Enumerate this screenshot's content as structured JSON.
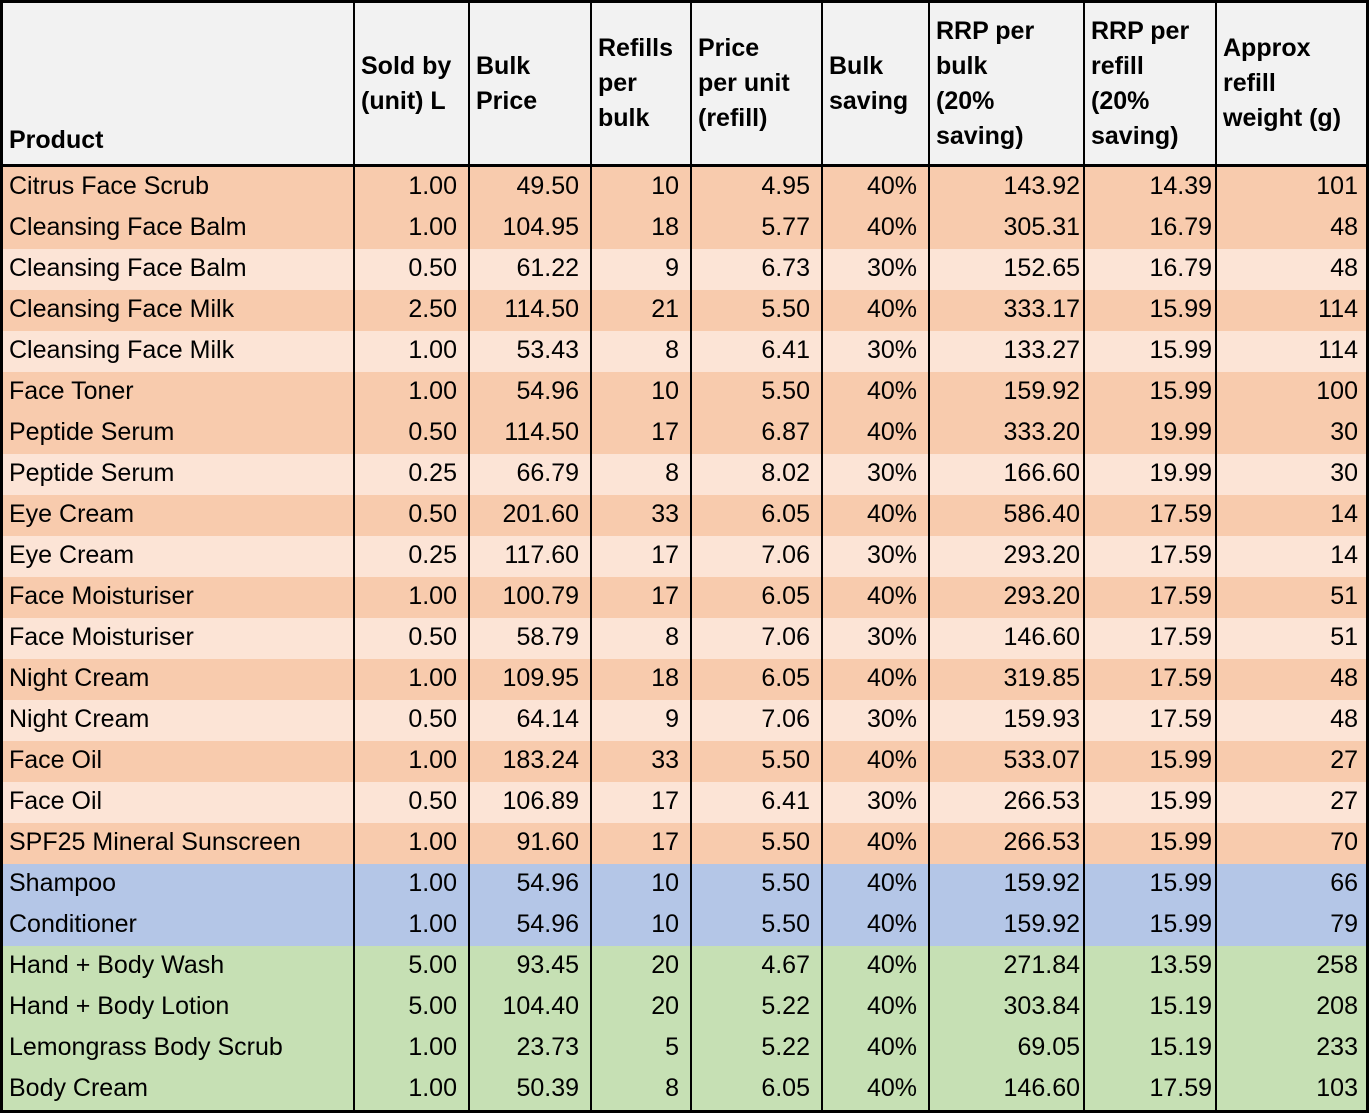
{
  "chart_data": {
    "type": "table",
    "title": "",
    "columns": [
      "Product",
      "Sold by (unit) L",
      "Bulk Price",
      "Refills per bulk",
      "Price per unit (refill)",
      "Bulk saving",
      "RRP per bulk (20% saving)",
      "RRP per refill (20% saving)",
      "Approx refill weight (g)"
    ],
    "columns_wrapped": [
      "Product",
      "Sold by\n(unit) L",
      "Bulk\nPrice",
      "Refills\nper\nbulk",
      "Price\nper unit\n(refill)",
      "Bulk\nsaving",
      "RRP per\nbulk\n(20%\nsaving)",
      "RRP per\nrefill\n(20%\nsaving)",
      "Approx\nrefill\nweight (g)"
    ],
    "rows": [
      {
        "band": "orange_dark",
        "cells": [
          "Citrus Face Scrub",
          "1.00",
          "49.50",
          "10",
          "4.95",
          "40%",
          "143.92",
          "14.39",
          "101"
        ]
      },
      {
        "band": "orange_dark",
        "cells": [
          "Cleansing Face Balm",
          "1.00",
          "104.95",
          "18",
          "5.77",
          "40%",
          "305.31",
          "16.79",
          "48"
        ]
      },
      {
        "band": "orange_light",
        "cells": [
          "Cleansing Face Balm",
          "0.50",
          "61.22",
          "9",
          "6.73",
          "30%",
          "152.65",
          "16.79",
          "48"
        ]
      },
      {
        "band": "orange_dark",
        "cells": [
          "Cleansing Face Milk",
          "2.50",
          "114.50",
          "21",
          "5.50",
          "40%",
          "333.17",
          "15.99",
          "114"
        ]
      },
      {
        "band": "orange_light",
        "cells": [
          "Cleansing Face Milk",
          "1.00",
          "53.43",
          "8",
          "6.41",
          "30%",
          "133.27",
          "15.99",
          "114"
        ]
      },
      {
        "band": "orange_dark",
        "cells": [
          "Face Toner",
          "1.00",
          "54.96",
          "10",
          "5.50",
          "40%",
          "159.92",
          "15.99",
          "100"
        ]
      },
      {
        "band": "orange_dark",
        "cells": [
          "Peptide Serum",
          "0.50",
          "114.50",
          "17",
          "6.87",
          "40%",
          "333.20",
          "19.99",
          "30"
        ]
      },
      {
        "band": "orange_light",
        "cells": [
          "Peptide Serum",
          "0.25",
          "66.79",
          "8",
          "8.02",
          "30%",
          "166.60",
          "19.99",
          "30"
        ]
      },
      {
        "band": "orange_dark",
        "cells": [
          "Eye Cream",
          "0.50",
          "201.60",
          "33",
          "6.05",
          "40%",
          "586.40",
          "17.59",
          "14"
        ]
      },
      {
        "band": "orange_light",
        "cells": [
          "Eye Cream",
          "0.25",
          "117.60",
          "17",
          "7.06",
          "30%",
          "293.20",
          "17.59",
          "14"
        ]
      },
      {
        "band": "orange_dark",
        "cells": [
          "Face Moisturiser",
          "1.00",
          "100.79",
          "17",
          "6.05",
          "40%",
          "293.20",
          "17.59",
          "51"
        ]
      },
      {
        "band": "orange_light",
        "cells": [
          "Face Moisturiser",
          "0.50",
          "58.79",
          "8",
          "7.06",
          "30%",
          "146.60",
          "17.59",
          "51"
        ]
      },
      {
        "band": "orange_dark",
        "cells": [
          "Night Cream",
          "1.00",
          "109.95",
          "18",
          "6.05",
          "40%",
          "319.85",
          "17.59",
          "48"
        ]
      },
      {
        "band": "orange_light",
        "cells": [
          "Night Cream",
          "0.50",
          "64.14",
          "9",
          "7.06",
          "30%",
          "159.93",
          "17.59",
          "48"
        ]
      },
      {
        "band": "orange_dark",
        "cells": [
          "Face Oil",
          "1.00",
          "183.24",
          "33",
          "5.50",
          "40%",
          "533.07",
          "15.99",
          "27"
        ]
      },
      {
        "band": "orange_light",
        "cells": [
          "Face Oil",
          "0.50",
          "106.89",
          "17",
          "6.41",
          "30%",
          "266.53",
          "15.99",
          "27"
        ]
      },
      {
        "band": "orange_dark",
        "cells": [
          "SPF25 Mineral Sunscreen",
          "1.00",
          "91.60",
          "17",
          "5.50",
          "40%",
          "266.53",
          "15.99",
          "70"
        ]
      },
      {
        "band": "blue",
        "cells": [
          "Shampoo",
          "1.00",
          "54.96",
          "10",
          "5.50",
          "40%",
          "159.92",
          "15.99",
          "66"
        ]
      },
      {
        "band": "blue",
        "cells": [
          "Conditioner",
          "1.00",
          "54.96",
          "10",
          "5.50",
          "40%",
          "159.92",
          "15.99",
          "79"
        ]
      },
      {
        "band": "green",
        "cells": [
          "Hand + Body Wash",
          "5.00",
          "93.45",
          "20",
          "4.67",
          "40%",
          "271.84",
          "13.59",
          "258"
        ]
      },
      {
        "band": "green",
        "cells": [
          "Hand + Body Lotion",
          "5.00",
          "104.40",
          "20",
          "5.22",
          "40%",
          "303.84",
          "15.19",
          "208"
        ]
      },
      {
        "band": "green",
        "cells": [
          "Lemongrass Body Scrub",
          "1.00",
          "23.73",
          "5",
          "5.22",
          "40%",
          "69.05",
          "15.19",
          "233"
        ]
      },
      {
        "band": "green",
        "cells": [
          "Body Cream",
          "1.00",
          "50.39",
          "8",
          "6.05",
          "40%",
          "146.60",
          "17.59",
          "103"
        ]
      }
    ],
    "colors": {
      "header_bg": "#F2F2F2",
      "border": "#000000",
      "bands": {
        "orange_dark": "#F8CBAD",
        "orange_light": "#FCE4D6",
        "blue": "#B4C6E7",
        "green": "#C6E0B4"
      }
    },
    "layout_hints": {
      "grid": "vertical column borders only, no horizontal lines between data rows",
      "sections": "orange = face products, blue = hair products, green = body products"
    }
  }
}
